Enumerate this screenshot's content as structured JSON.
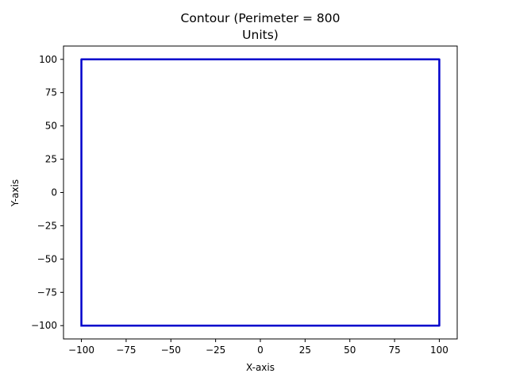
{
  "chart_data": {
    "type": "line",
    "title_lines": [
      "Contour (Perimeter = 800",
      "Units)"
    ],
    "xlabel": "X-axis",
    "ylabel": "Y-axis",
    "xlim": [
      -110,
      110
    ],
    "ylim": [
      -110,
      110
    ],
    "xticks": [
      -100,
      -75,
      -50,
      -25,
      0,
      25,
      50,
      75,
      100
    ],
    "yticks": [
      -100,
      -75,
      -50,
      -25,
      0,
      25,
      50,
      75,
      100
    ],
    "xtick_labels": [
      "−100",
      "−75",
      "−50",
      "−25",
      "0",
      "25",
      "50",
      "75",
      "100"
    ],
    "ytick_labels": [
      "−100",
      "−75",
      "−50",
      "−25",
      "0",
      "25",
      "50",
      "75",
      "100"
    ],
    "grid": false,
    "series": [
      {
        "color": "#0000cc",
        "x": [
          -100,
          100,
          100,
          -100,
          -100
        ],
        "y": [
          -100,
          -100,
          100,
          100,
          -100
        ]
      }
    ]
  }
}
